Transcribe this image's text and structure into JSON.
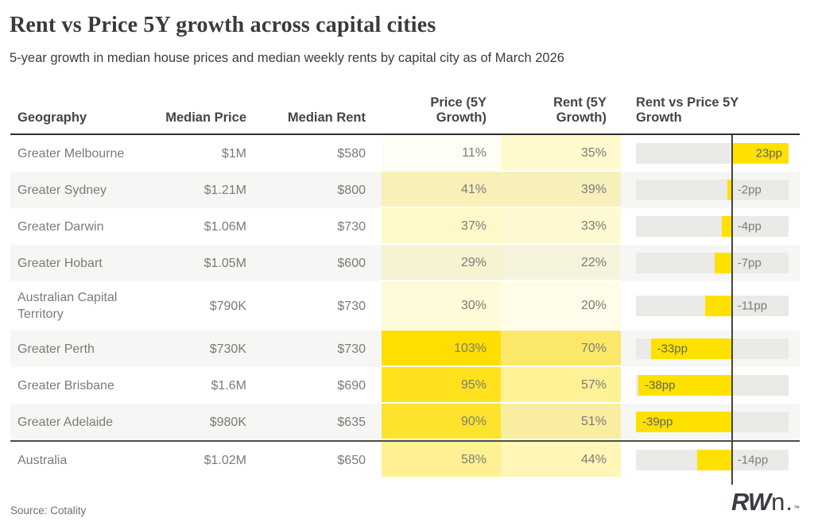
{
  "page": {
    "title": "Rent vs Price 5Y growth across capital cities",
    "subtitle": "5-year growth in median house prices and median weekly rents by capital city as of March 2026"
  },
  "table": {
    "headers": {
      "geography": "Geography",
      "median_price": "Median Price",
      "median_rent": "Median Rent",
      "price_growth": "Price (5Y Growth)",
      "rent_growth": "Rent (5Y Growth)",
      "diff": "Rent vs Price 5Y Growth"
    }
  },
  "chart_data": {
    "type": "table",
    "title": "Rent vs Price 5Y growth across capital cities",
    "columns": [
      "Geography",
      "Median Price",
      "Median Rent",
      "Price (5Y Growth)",
      "Rent (5Y Growth)",
      "Rent vs Price 5Y Growth"
    ],
    "rows": [
      {
        "geography": "Greater Melbourne",
        "median_price": "$1M",
        "median_rent": "$580",
        "price_growth_pct": 11,
        "rent_growth_pct": 35,
        "rent_vs_price_pp": 23,
        "diff_label": "23pp"
      },
      {
        "geography": "Greater Sydney",
        "median_price": "$1.21M",
        "median_rent": "$800",
        "price_growth_pct": 41,
        "rent_growth_pct": 39,
        "rent_vs_price_pp": -2,
        "diff_label": "-2pp"
      },
      {
        "geography": "Greater Darwin",
        "median_price": "$1.06M",
        "median_rent": "$730",
        "price_growth_pct": 37,
        "rent_growth_pct": 33,
        "rent_vs_price_pp": -4,
        "diff_label": "-4pp"
      },
      {
        "geography": "Greater Hobart",
        "median_price": "$1.05M",
        "median_rent": "$600",
        "price_growth_pct": 29,
        "rent_growth_pct": 22,
        "rent_vs_price_pp": -7,
        "diff_label": "-7pp"
      },
      {
        "geography": "Australian Capital Territory",
        "median_price": "$790K",
        "median_rent": "$730",
        "price_growth_pct": 30,
        "rent_growth_pct": 20,
        "rent_vs_price_pp": -11,
        "diff_label": "-11pp"
      },
      {
        "geography": "Greater Perth",
        "median_price": "$730K",
        "median_rent": "$730",
        "price_growth_pct": 103,
        "rent_growth_pct": 70,
        "rent_vs_price_pp": -33,
        "diff_label": "-33pp"
      },
      {
        "geography": "Greater Brisbane",
        "median_price": "$1.6M",
        "median_rent": "$690",
        "price_growth_pct": 95,
        "rent_growth_pct": 57,
        "rent_vs_price_pp": -38,
        "diff_label": "-38pp"
      },
      {
        "geography": "Greater Adelaide",
        "median_price": "$980K",
        "median_rent": "$635",
        "price_growth_pct": 90,
        "rent_growth_pct": 51,
        "rent_vs_price_pp": -39,
        "diff_label": "-39pp"
      },
      {
        "geography": "Australia",
        "median_price": "$1.02M",
        "median_rent": "$650",
        "price_growth_pct": 58,
        "rent_growth_pct": 44,
        "rent_vs_price_pp": -14,
        "diff_label": "-14pp"
      }
    ],
    "bar": {
      "min_pp": -39,
      "max_pp": 23,
      "unit": "pp",
      "bar_color": "#FFE100",
      "track_color": "#EAEAE7",
      "axis_color": "#45443f"
    },
    "heatmap": {
      "base_color_rgb": [
        255,
        222,
        0
      ],
      "max_value": 103,
      "gamma": 1.5
    },
    "layout_hints": {
      "striped_row_color": "#F6F6F4",
      "legend": "none",
      "grid": "off",
      "last_row_is_summary": true
    }
  },
  "footer": {
    "source": "Source: Cotality",
    "logo_rw": "RW",
    "logo_n": "n",
    "logo_tm": "™"
  }
}
